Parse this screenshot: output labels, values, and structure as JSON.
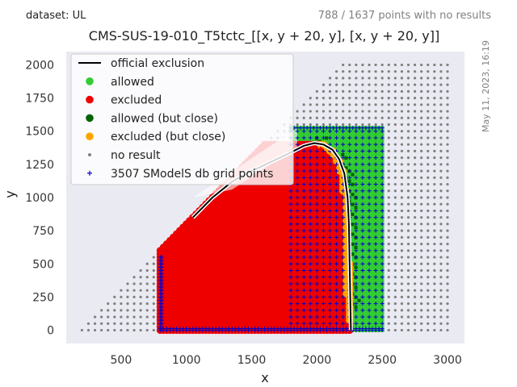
{
  "header": {
    "dataset": "dataset: UL",
    "no_result_count": "788 / 1637 points with no results",
    "timestamp": "May 11, 2023, 16:19"
  },
  "chart_data": {
    "type": "scatter",
    "title": "CMS-SUS-19-010_T5tctc_[[x, y + 20, y], [x, y + 20, y]]",
    "xlabel": "x",
    "ylabel": "y",
    "xlim": [
      80,
      3130
    ],
    "ylim": [
      -100,
      2100
    ],
    "xticks": [
      500,
      1000,
      1500,
      2000,
      2500,
      3000
    ],
    "yticks": [
      0,
      250,
      500,
      750,
      1000,
      1250,
      1500,
      1750,
      2000
    ],
    "grid": false,
    "legend_position": "top-left",
    "legend": [
      {
        "label": "official exclusion",
        "marker": "line",
        "color": "#000000"
      },
      {
        "label": "allowed",
        "marker": "circle",
        "color": "#33cc33"
      },
      {
        "label": "excluded",
        "marker": "circle",
        "color": "#ee0000"
      },
      {
        "label": "allowed (but close)",
        "marker": "circle",
        "color": "#006400"
      },
      {
        "label": "excluded (but close)",
        "marker": "circle",
        "color": "#ffa500"
      },
      {
        "label": "no result",
        "marker": "dot",
        "color": "#808080"
      },
      {
        "label": "3507 SModelS db grid points",
        "marker": "plus",
        "color": "#0000cc"
      }
    ],
    "regions": {
      "no_result": {
        "x_range": [
          200,
          3000
        ],
        "y_min": 0,
        "y_max": 2000,
        "upper_bound": "y <= x - 200"
      },
      "excluded": {
        "x_range": [
          800,
          2250
        ],
        "y_range": [
          0,
          1400
        ],
        "upper_bound": "y <= x - 200"
      },
      "allowed": {
        "x_range": [
          1800,
          2500
        ],
        "y_range": [
          0,
          1525
        ]
      },
      "grid_points": {
        "x_range": [
          800,
          2500
        ],
        "y_range": [
          0,
          1525
        ]
      }
    },
    "exclusion_curve": {
      "x": [
        1050,
        1200,
        1350,
        1500,
        1650,
        1800,
        1900,
        1980,
        2050,
        2120,
        2170,
        2210,
        2235,
        2245,
        2250,
        2255,
        2260
      ],
      "y": [
        850,
        1000,
        1120,
        1200,
        1270,
        1340,
        1390,
        1410,
        1400,
        1360,
        1290,
        1180,
        1000,
        800,
        500,
        250,
        0
      ]
    }
  }
}
